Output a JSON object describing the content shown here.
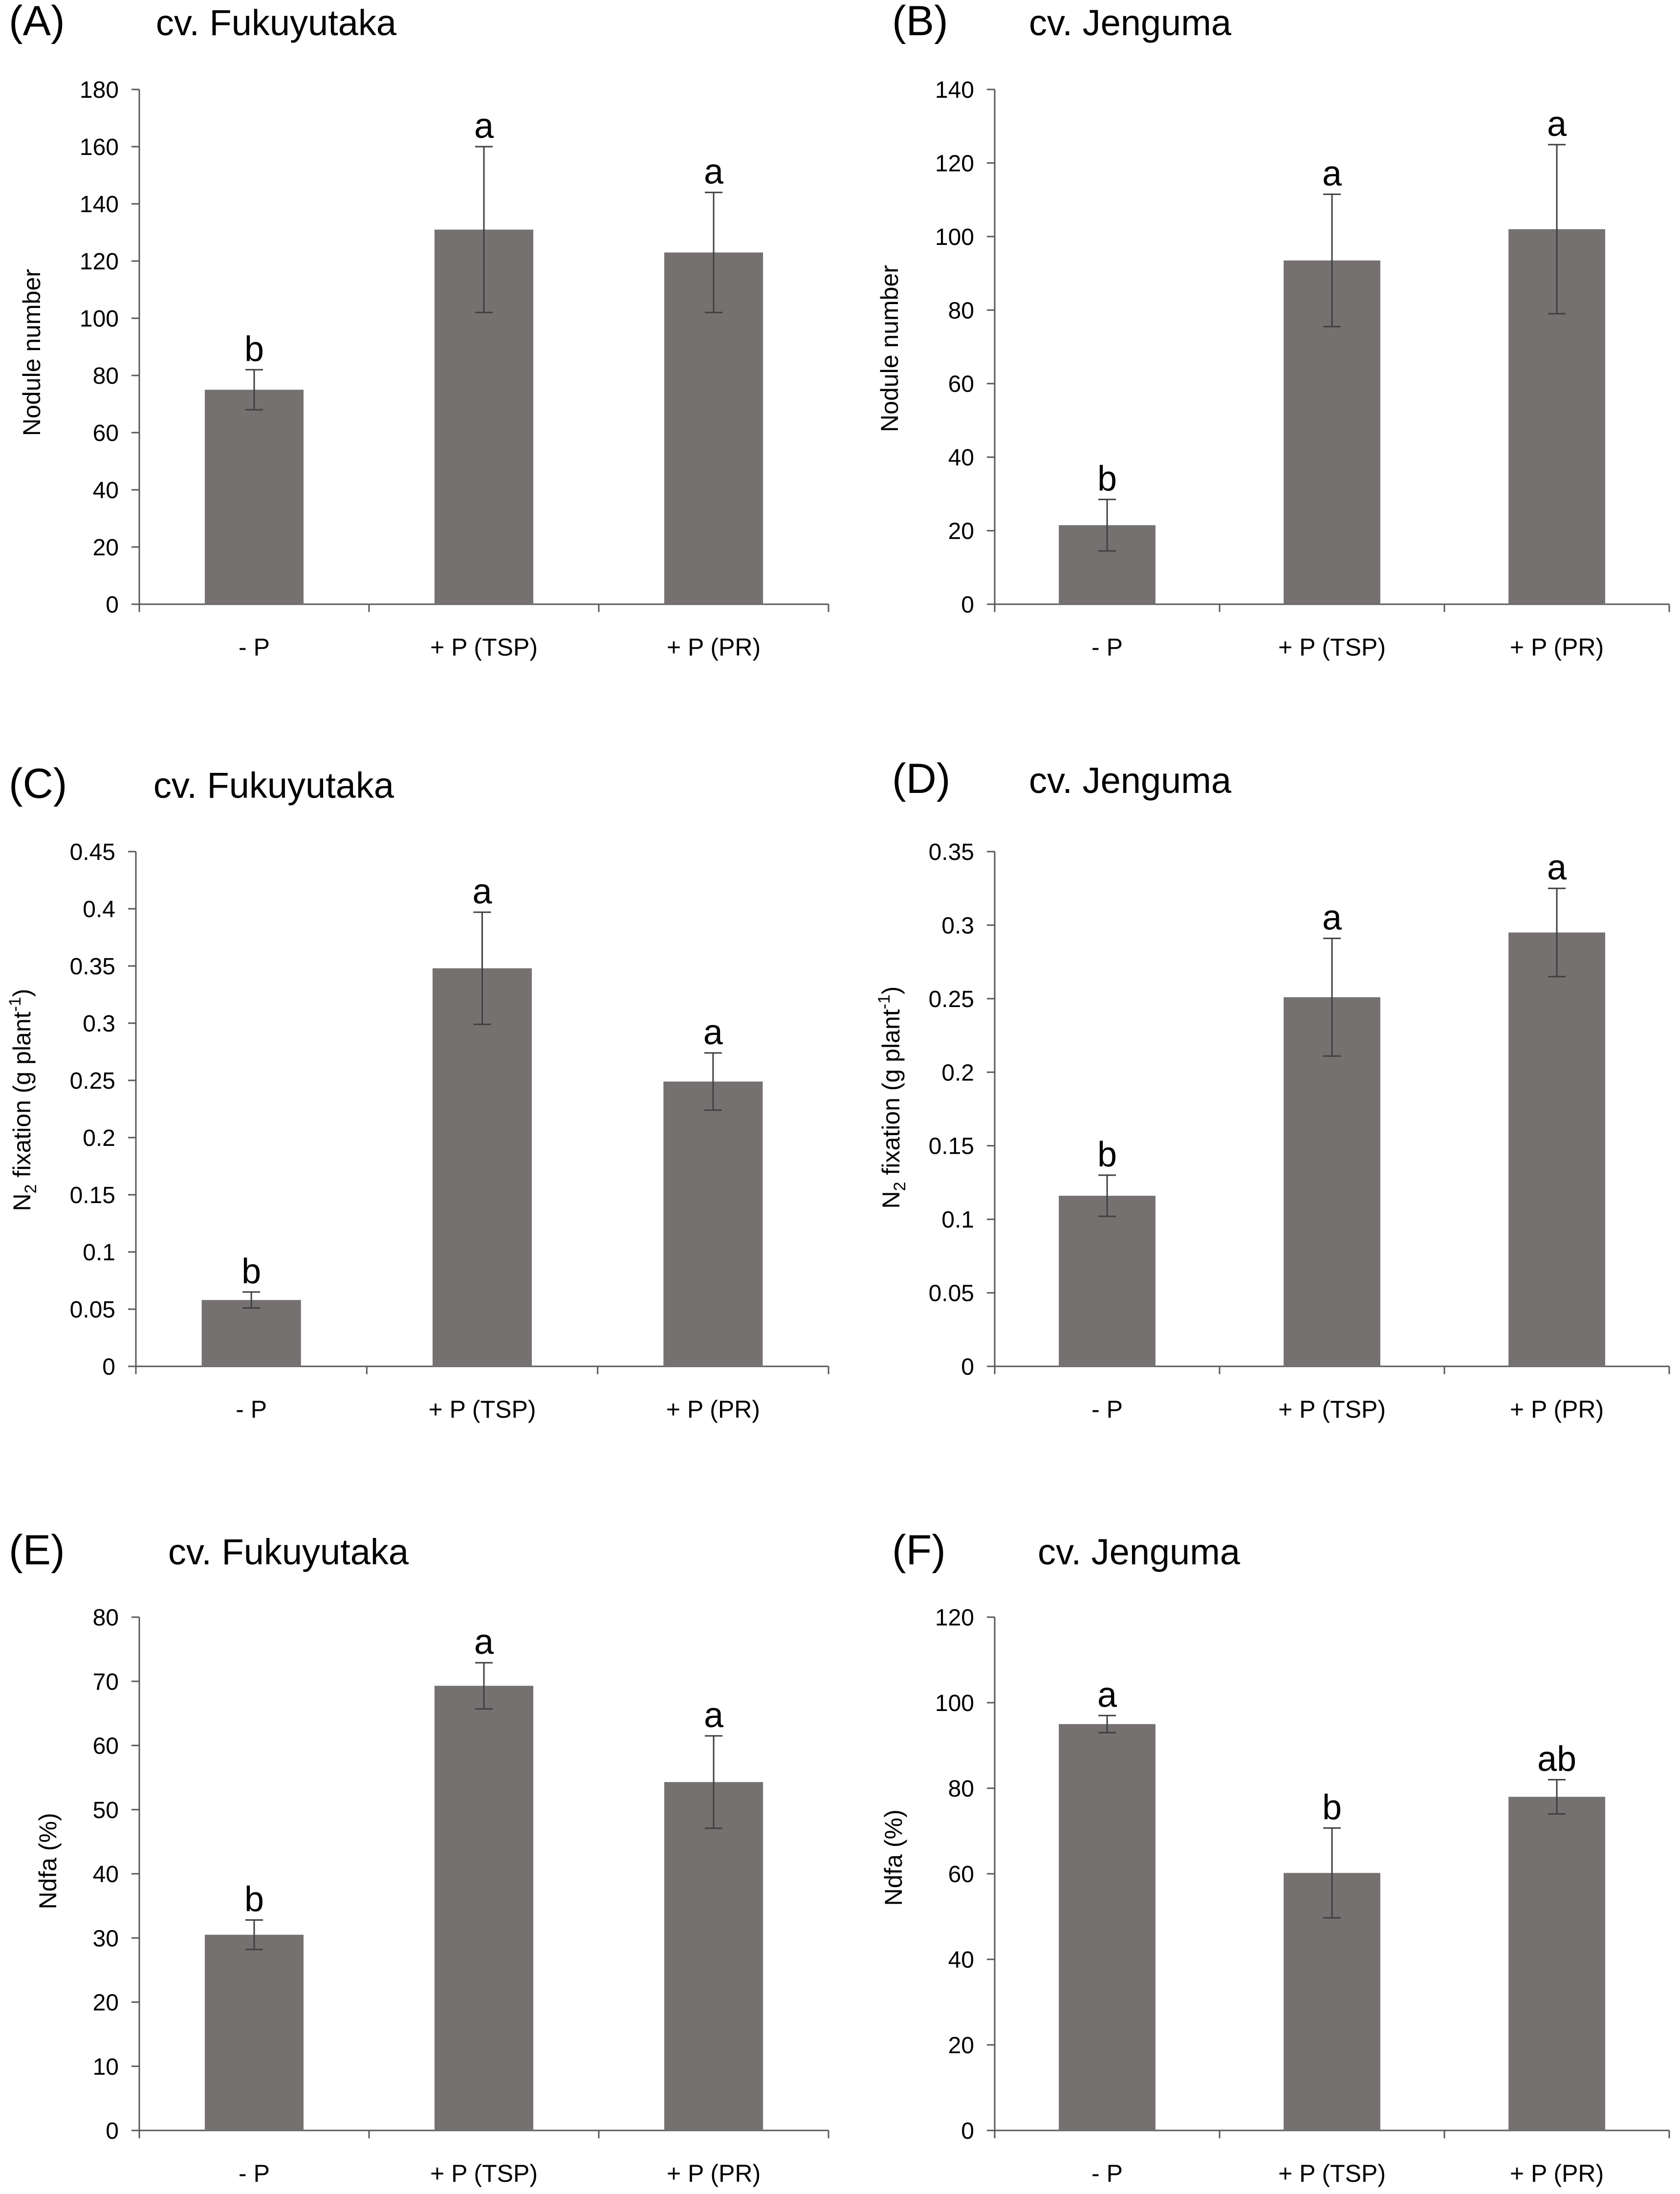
{
  "chart_data": [
    {
      "panel": "(A)",
      "title": "cv. Fukuyutaka",
      "type": "bar",
      "ylabel": "Nodule number",
      "ylim": [
        0,
        180
      ],
      "yticks": [
        "0",
        "20",
        "40",
        "60",
        "80",
        "100",
        "120",
        "140",
        "160",
        "180"
      ],
      "categories": [
        "- P",
        "+ P (TSP)",
        "+ P (PR)"
      ],
      "values": [
        75,
        131,
        123
      ],
      "errors": [
        7,
        29,
        21
      ],
      "letters": [
        "b",
        "a",
        "a"
      ],
      "bar_color": "#767171"
    },
    {
      "panel": "(B)",
      "title": "cv. Jenguma",
      "type": "bar",
      "ylabel": "Nodule number",
      "ylim": [
        0,
        140
      ],
      "yticks": [
        "0",
        "20",
        "40",
        "60",
        "80",
        "100",
        "120",
        "140"
      ],
      "categories": [
        "- P",
        "+ P (TSP)",
        "+ P (PR)"
      ],
      "values": [
        21.5,
        93.5,
        102
      ],
      "errors": [
        7,
        18,
        23
      ],
      "letters": [
        "b",
        "a",
        "a"
      ],
      "bar_color": "#767171"
    },
    {
      "panel": "(C)",
      "title": "cv. Fukuyutaka",
      "type": "bar",
      "ylabel": "N2 fixation (g plant-1)",
      "ylim": [
        0,
        0.45
      ],
      "yticks": [
        "0",
        "0.05",
        "0.1",
        "0.15",
        "0.2",
        "0.25",
        "0.3",
        "0.35",
        "0.4",
        "0.45"
      ],
      "categories": [
        "- P",
        "+ P (TSP)",
        "+ P (PR)"
      ],
      "values": [
        0.058,
        0.348,
        0.249
      ],
      "errors": [
        0.007,
        0.049,
        0.025
      ],
      "letters": [
        "b",
        "a",
        "a"
      ],
      "bar_color": "#767171"
    },
    {
      "panel": "(D)",
      "title": "cv. Jenguma",
      "type": "bar",
      "ylabel": "N2 fixation (g plant-1)",
      "ylim": [
        0,
        0.35
      ],
      "yticks": [
        "0",
        "0.05",
        "0.1",
        "0.15",
        "0.2",
        "0.25",
        "0.3",
        "0.35"
      ],
      "categories": [
        "- P",
        "+ P (TSP)",
        "+ P (PR)"
      ],
      "values": [
        0.116,
        0.251,
        0.295
      ],
      "errors": [
        0.014,
        0.04,
        0.03
      ],
      "letters": [
        "b",
        "a",
        "a"
      ],
      "bar_color": "#767171"
    },
    {
      "panel": "(E)",
      "title": "cv. Fukuyutaka",
      "type": "bar",
      "ylabel": "Ndfa (%)",
      "ylim": [
        0,
        80
      ],
      "yticks": [
        "0",
        "10",
        "20",
        "30",
        "40",
        "50",
        "60",
        "70",
        "80"
      ],
      "categories": [
        "- P",
        "+ P (TSP)",
        "+ P (PR)"
      ],
      "values": [
        30.5,
        69.3,
        54.3
      ],
      "errors": [
        2.3,
        3.6,
        7.2
      ],
      "letters": [
        "b",
        "a",
        "a"
      ],
      "bar_color": "#767171"
    },
    {
      "panel": "(F)",
      "title": "cv. Jenguma",
      "type": "bar",
      "ylabel": "Ndfa (%)",
      "ylim": [
        0,
        120
      ],
      "yticks": [
        "0",
        "20",
        "40",
        "60",
        "80",
        "100",
        "120"
      ],
      "categories": [
        "- P",
        "+ P (TSP)",
        "+ P (PR)"
      ],
      "values": [
        95,
        60.2,
        78
      ],
      "errors": [
        2,
        10.5,
        4
      ],
      "letters": [
        "a",
        "b",
        "ab"
      ],
      "bar_color": "#767171"
    }
  ]
}
